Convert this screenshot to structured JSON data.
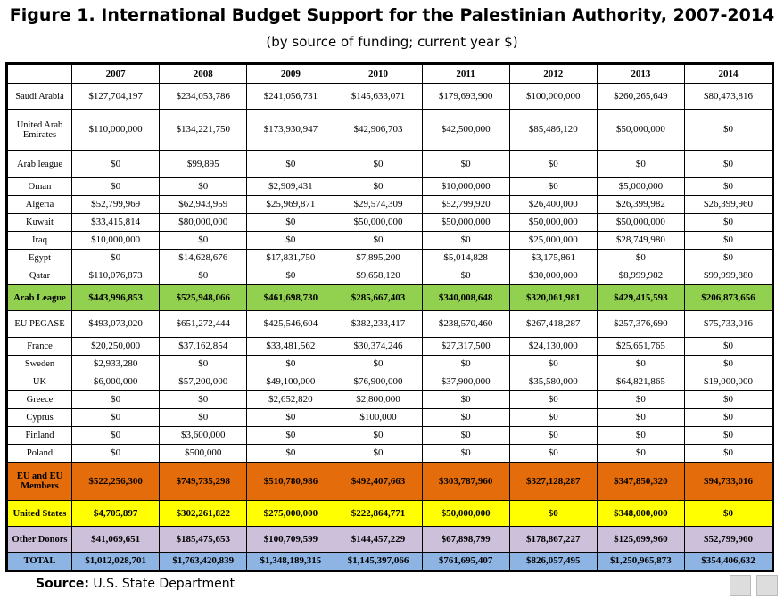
{
  "title": "Figure 1. International Budget Support for the Palestinian Authority, 2007-2014",
  "subtitle": "(by source of funding; current year $)",
  "table": {
    "columns": [
      "2007",
      "2008",
      "2009",
      "2010",
      "2011",
      "2012",
      "2013",
      "2014"
    ],
    "rows": [
      {
        "label": "Saudi Arabia",
        "values": [
          "$127,704,197",
          "$234,053,786",
          "$241,056,731",
          "$145,633,071",
          "$179,693,900",
          "$100,000,000",
          "$260,265,649",
          "$80,473,816"
        ]
      },
      {
        "label": "United Arab Emirates",
        "values": [
          "$110,000,000",
          "$134,221,750",
          "$173,930,947",
          "$42,906,703",
          "$42,500,000",
          "$85,486,120",
          "$50,000,000",
          "$0"
        ]
      },
      {
        "label": "Arab league",
        "values": [
          "$0",
          "$99,895",
          "$0",
          "$0",
          "$0",
          "$0",
          "$0",
          "$0"
        ]
      },
      {
        "label": "Oman",
        "values": [
          "$0",
          "$0",
          "$2,909,431",
          "$0",
          "$10,000,000",
          "$0",
          "$5,000,000",
          "$0"
        ]
      },
      {
        "label": "Algeria",
        "values": [
          "$52,799,969",
          "$62,943,959",
          "$25,969,871",
          "$29,574,309",
          "$52,799,920",
          "$26,400,000",
          "$26,399,982",
          "$26,399,960"
        ]
      },
      {
        "label": "Kuwait",
        "values": [
          "$33,415,814",
          "$80,000,000",
          "$0",
          "$50,000,000",
          "$50,000,000",
          "$50,000,000",
          "$50,000,000",
          "$0"
        ]
      },
      {
        "label": "Iraq",
        "values": [
          "$10,000,000",
          "$0",
          "$0",
          "$0",
          "$0",
          "$25,000,000",
          "$28,749,980",
          "$0"
        ]
      },
      {
        "label": "Egypt",
        "values": [
          "$0",
          "$14,628,676",
          "$17,831,750",
          "$7,895,200",
          "$5,014,828",
          "$3,175,861",
          "$0",
          "$0"
        ]
      },
      {
        "label": "Qatar",
        "values": [
          "$110,076,873",
          "$0",
          "$0",
          "$9,658,120",
          "$0",
          "$30,000,000",
          "$8,999,982",
          "$99,999,880"
        ]
      },
      {
        "label": "Arab League",
        "color": "#92d050",
        "values": [
          "$443,996,853",
          "$525,948,066",
          "$461,698,730",
          "$285,667,403",
          "$340,008,648",
          "$320,061,981",
          "$429,415,593",
          "$206,873,656"
        ]
      },
      {
        "label": "EU PEGASE",
        "values": [
          "$493,073,020",
          "$651,272,444",
          "$425,546,604",
          "$382,233,417",
          "$238,570,460",
          "$267,418,287",
          "$257,376,690",
          "$75,733,016"
        ]
      },
      {
        "label": "France",
        "values": [
          "$20,250,000",
          "$37,162,854",
          "$33,481,562",
          "$30,374,246",
          "$27,317,500",
          "$24,130,000",
          "$25,651,765",
          "$0"
        ]
      },
      {
        "label": "Sweden",
        "values": [
          "$2,933,280",
          "$0",
          "$0",
          "$0",
          "$0",
          "$0",
          "$0",
          "$0"
        ]
      },
      {
        "label": "UK",
        "values": [
          "$6,000,000",
          "$57,200,000",
          "$49,100,000",
          "$76,900,000",
          "$37,900,000",
          "$35,580,000",
          "$64,821,865",
          "$19,000,000"
        ]
      },
      {
        "label": "Greece",
        "values": [
          "$0",
          "$0",
          "$2,652,820",
          "$2,800,000",
          "$0",
          "$0",
          "$0",
          "$0"
        ]
      },
      {
        "label": "Cyprus",
        "values": [
          "$0",
          "$0",
          "$0",
          "$100,000",
          "$0",
          "$0",
          "$0",
          "$0"
        ]
      },
      {
        "label": "Finland",
        "values": [
          "$0",
          "$3,600,000",
          "$0",
          "$0",
          "$0",
          "$0",
          "$0",
          "$0"
        ]
      },
      {
        "label": "Poland",
        "values": [
          "$0",
          "$500,000",
          "$0",
          "$0",
          "$0",
          "$0",
          "$0",
          "$0"
        ]
      },
      {
        "label": "EU and EU Members",
        "color": "#e46c0a",
        "values": [
          "$522,256,300",
          "$749,735,298",
          "$510,780,986",
          "$492,407,663",
          "$303,787,960",
          "$327,128,287",
          "$347,850,320",
          "$94,733,016"
        ]
      },
      {
        "label": "United States",
        "color": "#ffff00",
        "values": [
          "$4,705,897",
          "$302,261,822",
          "$275,000,000",
          "$222,864,771",
          "$50,000,000",
          "$0",
          "$348,000,000",
          "$0"
        ]
      },
      {
        "label": "Other Donors",
        "color": "#ccc0da",
        "values": [
          "$41,069,651",
          "$185,475,653",
          "$100,709,599",
          "$144,457,229",
          "$67,898,799",
          "$178,867,227",
          "$125,699,960",
          "$52,799,960"
        ]
      },
      {
        "label": "TOTAL",
        "color": "#8db4e2",
        "values": [
          "$1,012,028,701",
          "$1,763,420,839",
          "$1,348,189,315",
          "$1,145,397,066",
          "$761,695,407",
          "$826,057,495",
          "$1,250,965,873",
          "$354,406,632"
        ]
      }
    ]
  },
  "source": {
    "label": "Source:",
    "text": "U.S. State Department"
  }
}
